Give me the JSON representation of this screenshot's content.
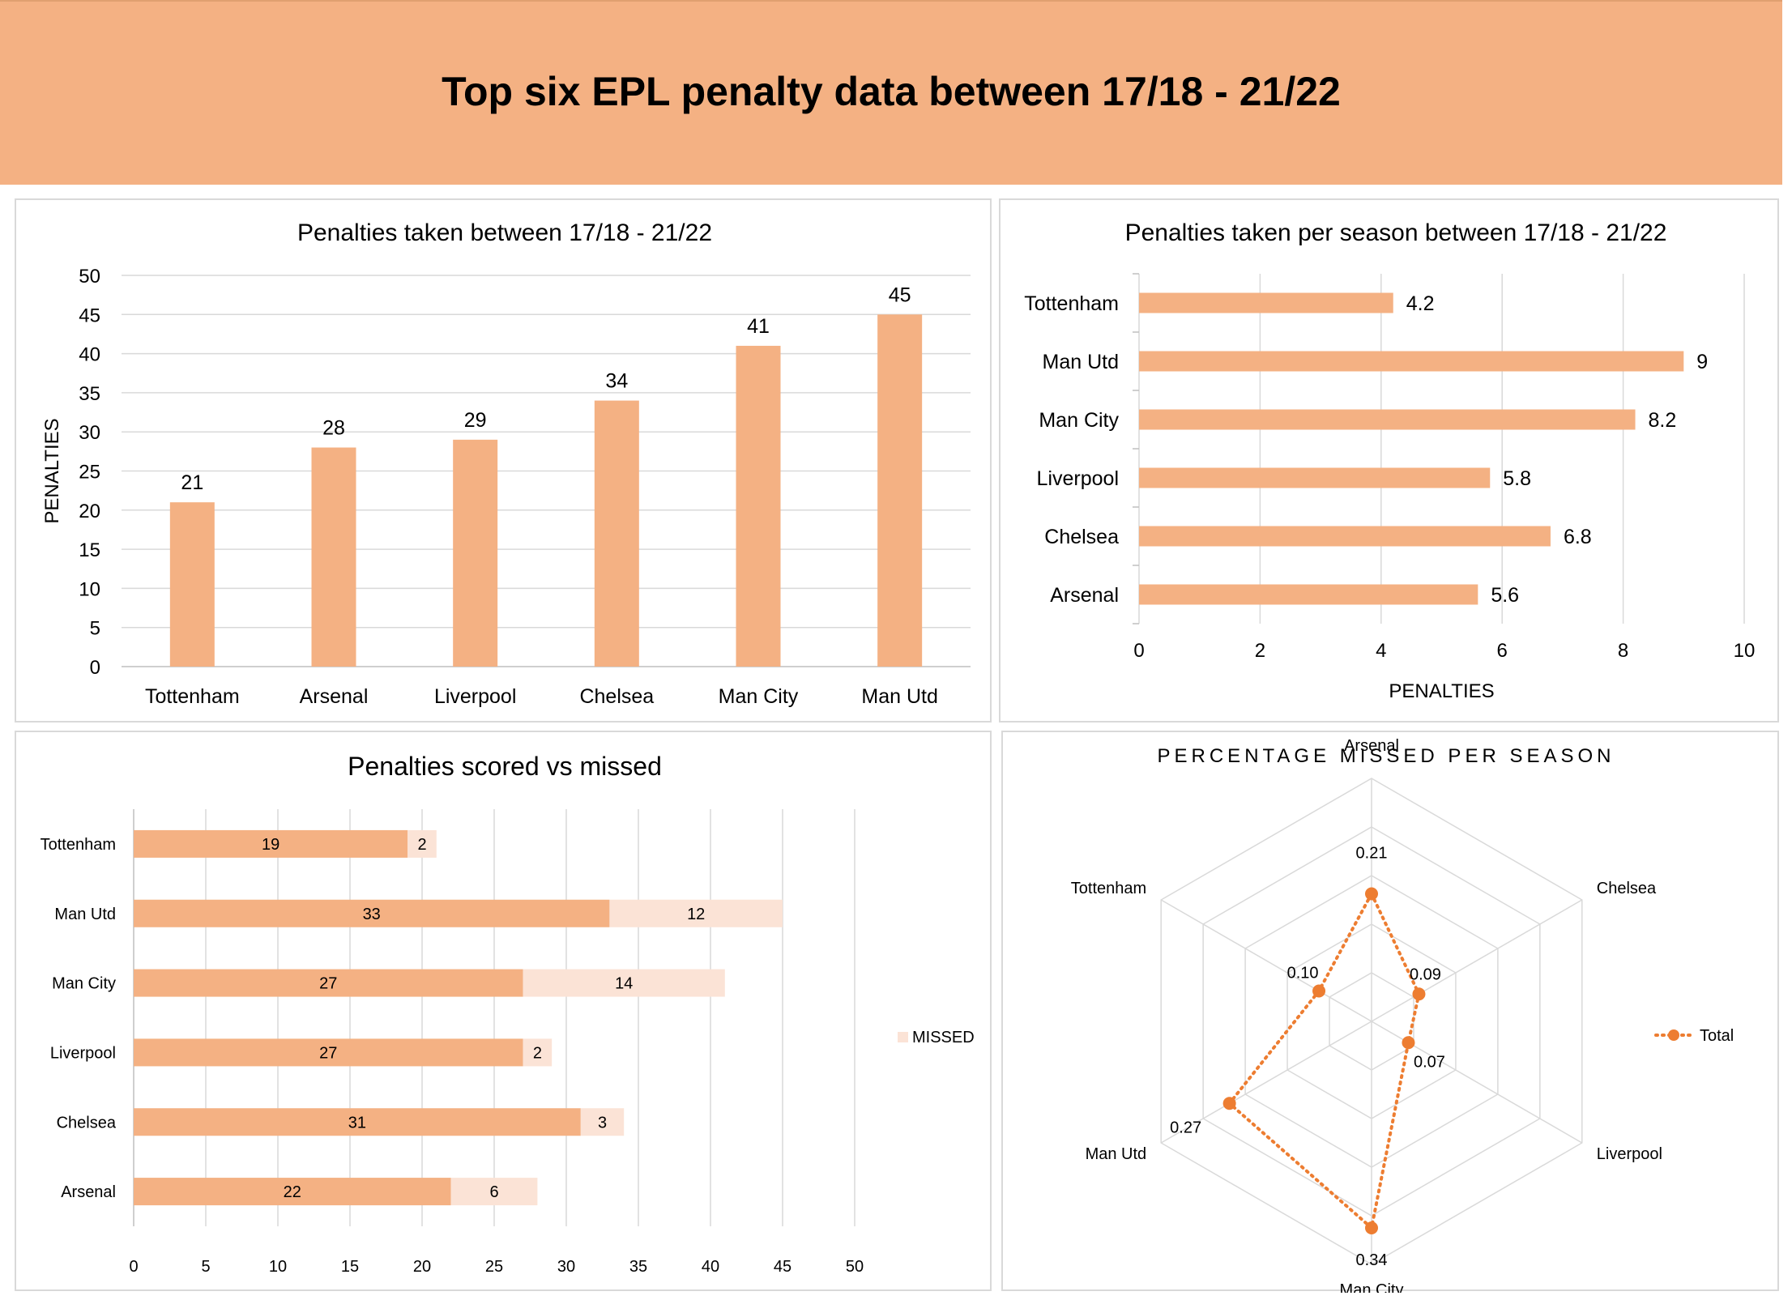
{
  "header": {
    "title": "Top six EPL penalty data between 17/18 - 21/22"
  },
  "colors": {
    "bar": "#f4b183",
    "missed": "#fbe3d6",
    "radar": "#ed7d31",
    "grid": "#d9d9d9",
    "header_bg": "#f4b183"
  },
  "chart_data": [
    {
      "id": "penalties-taken",
      "type": "bar",
      "title": "Penalties taken between 17/18 - 21/22",
      "xlabel": "",
      "ylabel": "PENALTIES",
      "ylim": [
        0,
        50
      ],
      "yticks": [
        0,
        5,
        10,
        15,
        20,
        25,
        30,
        35,
        40,
        45,
        50
      ],
      "grid": true,
      "categories": [
        "Tottenham",
        "Arsenal",
        "Liverpool",
        "Chelsea",
        "Man City",
        "Man Utd"
      ],
      "values": [
        21,
        28,
        29,
        34,
        41,
        45
      ]
    },
    {
      "id": "penalties-per-season",
      "type": "bar",
      "orientation": "horizontal",
      "title": "Penalties taken per season between 17/18 - 21/22",
      "xlabel": "PENALTIES",
      "ylabel": "",
      "xlim": [
        0,
        10
      ],
      "xticks": [
        0,
        2,
        4,
        6,
        8,
        10
      ],
      "grid": true,
      "categories": [
        "Tottenham",
        "Man Utd",
        "Man City",
        "Liverpool",
        "Chelsea",
        "Arsenal"
      ],
      "values": [
        4.2,
        9,
        8.2,
        5.8,
        6.8,
        5.6
      ],
      "value_labels": [
        "4.2",
        "9",
        "8.2",
        "5.8",
        "6.8",
        "5.6"
      ]
    },
    {
      "id": "scored-vs-missed",
      "type": "bar",
      "orientation": "horizontal",
      "stacked": true,
      "title": "Penalties scored vs missed",
      "xlim": [
        0,
        50
      ],
      "xticks": [
        0,
        5,
        10,
        15,
        20,
        25,
        30,
        35,
        40,
        45,
        50
      ],
      "grid": true,
      "legend_position": "right",
      "legend_entries": [
        "MISSED"
      ],
      "categories": [
        "Tottenham",
        "Man Utd",
        "Man City",
        "Liverpool",
        "Chelsea",
        "Arsenal"
      ],
      "series": [
        {
          "values": [
            19,
            33,
            27,
            27,
            31,
            22
          ]
        },
        {
          "name": "MISSED",
          "values": [
            2,
            12,
            14,
            2,
            3,
            6
          ]
        }
      ]
    },
    {
      "id": "percentage-missed",
      "type": "radar",
      "title": "PERCENTAGE MISSED PER SEASON",
      "legend_position": "right",
      "categories": [
        "Arsenal",
        "Chelsea",
        "Liverpool",
        "Man City",
        "Man Utd",
        "Tottenham"
      ],
      "rlim": [
        0,
        0.4
      ],
      "series": [
        {
          "name": "Total",
          "values": [
            0.21,
            0.09,
            0.07,
            0.34,
            0.27,
            0.1
          ],
          "value_labels": [
            "0.21",
            "0.09",
            "0.07",
            "0.34",
            "0.27",
            "0.10"
          ]
        }
      ]
    }
  ]
}
